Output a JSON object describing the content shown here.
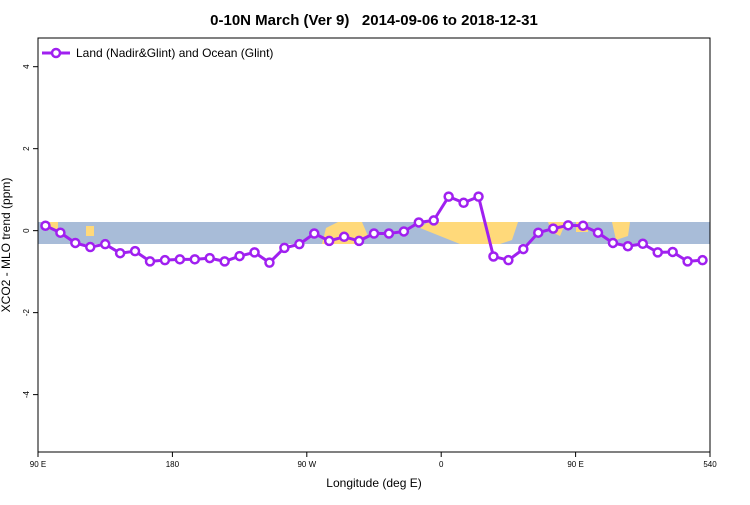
{
  "chart_data": {
    "type": "line",
    "title": "0-10N March (Ver 9)   2014-09-06 to 2018-12-31",
    "x_label": "Longitude (deg E)",
    "y_label": "XCO2 - MLO trend (ppm)",
    "legend_position": "top-left",
    "x": [
      95,
      105,
      115,
      125,
      135,
      145,
      155,
      165,
      175,
      185,
      195,
      205,
      215,
      225,
      235,
      245,
      255,
      265,
      275,
      285,
      295,
      305,
      315,
      325,
      335,
      345,
      355,
      365,
      375,
      385,
      395,
      405,
      415,
      425,
      435,
      445,
      455,
      465,
      475,
      485,
      495,
      505,
      515,
      525,
      535
    ],
    "series": [
      {
        "name": "Land (Nadir&Glint) and Ocean (Glint)",
        "color": "#a020f0",
        "values": [
          0.12,
          -0.05,
          -0.3,
          -0.4,
          -0.33,
          -0.55,
          -0.5,
          -0.75,
          -0.72,
          -0.7,
          -0.7,
          -0.67,
          -0.75,
          -0.62,
          -0.53,
          -0.78,
          -0.42,
          -0.33,
          -0.07,
          -0.25,
          -0.15,
          -0.25,
          -0.07,
          -0.07,
          -0.02,
          0.2,
          0.25,
          0.83,
          0.68,
          0.83,
          -0.63,
          -0.72,
          -0.45,
          -0.05,
          0.05,
          0.13,
          0.12,
          -0.05,
          -0.3,
          -0.38,
          -0.32,
          -0.53,
          -0.52,
          -0.75,
          -0.72
        ]
      }
    ],
    "xlim": [
      90,
      540
    ],
    "xticks": [
      {
        "value": 90,
        "label": "90 E"
      },
      180,
      {
        "value": 270,
        "label": "90 W"
      },
      {
        "value": 360,
        "label": "0"
      },
      {
        "value": 450,
        "label": "90 E"
      },
      540
    ],
    "ylim": [
      -5.4,
      4.7
    ],
    "yticks": [
      -4,
      -2,
      0,
      2,
      4
    ]
  }
}
